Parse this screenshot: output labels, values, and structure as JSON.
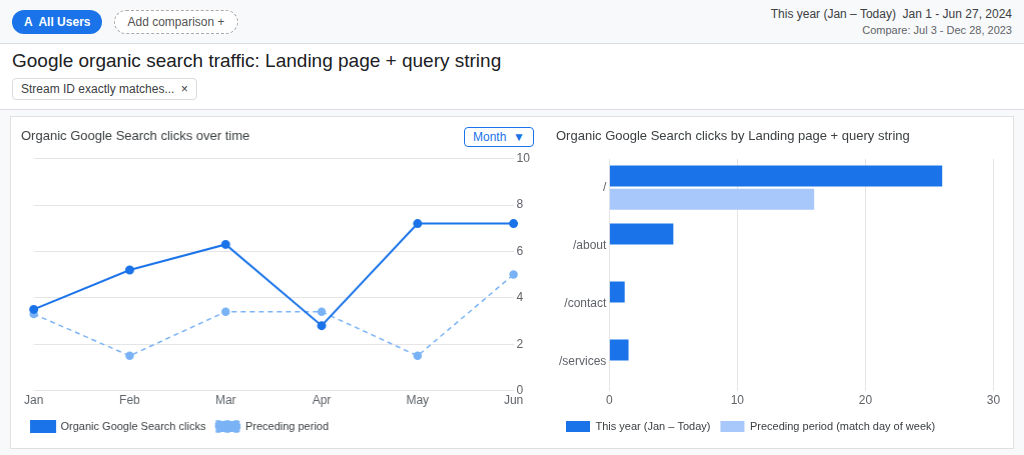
{
  "chart_data": [
    {
      "type": "line",
      "title": "Organic Google Search clicks over time",
      "annotations": [
        "Google organic search traffic: Landing page + query string",
        "A  All Users",
        "Add comparison +",
        "This year (Jan – Today)  Jan 1 - Jun 27, 2024",
        "Compare: Jul 3 - Dec 28, 2023",
        "Stream ID exactly matches...  ×",
        "Month  ▼"
      ],
      "categories": [
        "Jan",
        "Feb",
        "Mar",
        "Apr",
        "May",
        "Jun"
      ],
      "series": [
        {
          "name": "Organic Google Search clicks",
          "color": "#1a73e8",
          "values": [
            3.5,
            5.2,
            6.3,
            2.8,
            7.2,
            7.2
          ],
          "marker": "circle",
          "line_style": "solid"
        },
        {
          "name": "Preceding period",
          "color": "#7ab3f5",
          "values": [
            3.3,
            1.5,
            3.4,
            3.4,
            1.5,
            5.0
          ],
          "marker": "circle",
          "line_style": "dashed"
        }
      ],
      "ylim": [
        0,
        10
      ],
      "yticks": [
        0,
        2,
        4,
        6,
        8,
        10
      ],
      "grid": true,
      "legend": "bottom"
    },
    {
      "type": "bar",
      "title": "Organic Google Search clicks by Landing page + query string",
      "orientation": "horizontal",
      "categories": [
        "/",
        "/about",
        "/contact",
        "/services"
      ],
      "series": [
        {
          "name": "This year (Jan – Today)",
          "color": "#1a73e8",
          "values": [
            26,
            5,
            1.2,
            1.5
          ]
        },
        {
          "name": "Preceding period (match day of week)",
          "color": "#a8c7fa",
          "values": [
            16,
            0,
            0,
            0
          ]
        }
      ],
      "xlim": [
        0,
        30
      ],
      "xticks": [
        0,
        10,
        20,
        30
      ],
      "grid": true,
      "legend": "bottom"
    }
  ]
}
